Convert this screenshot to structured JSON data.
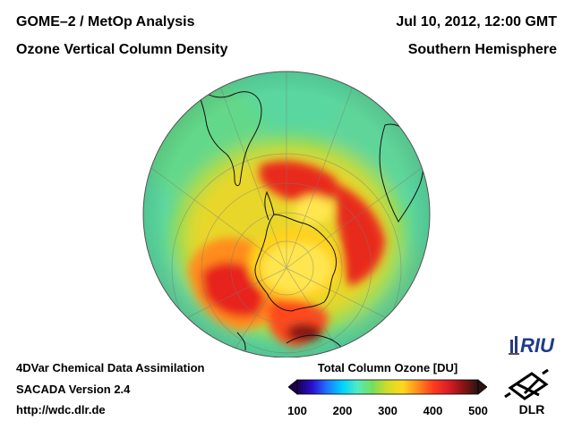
{
  "header": {
    "title_left": "GOME–2 / MetOp Analysis",
    "subtitle_left": "Ozone Vertical Column Density",
    "datetime": "Jul 10, 2012, 12:00 GMT",
    "region": "Southern Hemisphere"
  },
  "footer": {
    "line1": "4DVar Chemical Data Assimilation",
    "line2": "SACADA Version 2.4",
    "line3": "http://wdc.dlr.de"
  },
  "colorbar": {
    "title": "Total Column Ozone [DU]",
    "ticks": [
      "100",
      "200",
      "300",
      "400",
      "500"
    ],
    "range": [
      100,
      500
    ],
    "colors": [
      "#1a0050",
      "#2a0fd0",
      "#1e78ff",
      "#00d2ff",
      "#50ecc0",
      "#78dc5a",
      "#d2dc28",
      "#ffd71e",
      "#ff8c1e",
      "#ff3c1e",
      "#dc1e28",
      "#8c1414",
      "#281414"
    ]
  },
  "map": {
    "ocean_color": "#5ad7a0",
    "projection": "orthographic-south-polar"
  },
  "logos": {
    "riu": "RIU",
    "dlr": "DLR"
  }
}
